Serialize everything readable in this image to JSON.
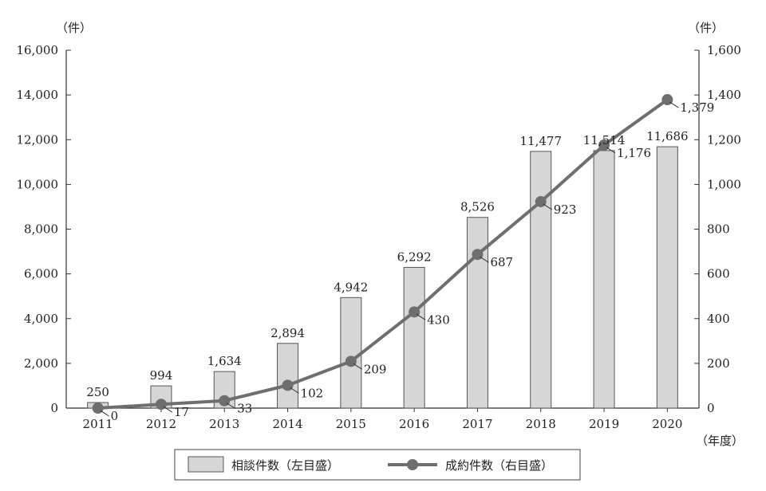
{
  "chart_data": {
    "type": "bar",
    "categories": [
      "2011",
      "2012",
      "2013",
      "2014",
      "2015",
      "2016",
      "2017",
      "2018",
      "2019",
      "2020"
    ],
    "series": [
      {
        "name": "相談件数（左目盛）",
        "type": "bar",
        "axis": "left",
        "values": [
          250,
          994,
          1634,
          2894,
          4942,
          6292,
          8526,
          11477,
          11514,
          11686
        ],
        "labels": [
          "250",
          "994",
          "1,634",
          "2,894",
          "4,942",
          "6,292",
          "8,526",
          "11,477",
          "11,514",
          "11,686"
        ]
      },
      {
        "name": "成約件数（右目盛）",
        "type": "line",
        "axis": "right",
        "values": [
          0,
          17,
          33,
          102,
          209,
          430,
          687,
          923,
          1176,
          1379
        ],
        "labels": [
          "0",
          "17",
          "33",
          "102",
          "209",
          "430",
          "687",
          "923",
          "1,176",
          "1,379"
        ]
      }
    ],
    "y_left": {
      "unit": "（件）",
      "ylim": [
        0,
        16000
      ],
      "ticks": [
        "0",
        "2,000",
        "4,000",
        "6,000",
        "8,000",
        "10,000",
        "12,000",
        "14,000",
        "16,000"
      ]
    },
    "y_right": {
      "unit": "（件）",
      "ylim": [
        0,
        1600
      ],
      "ticks": [
        "0",
        "200",
        "400",
        "600",
        "800",
        "1,000",
        "1,200",
        "1,400",
        "1,600"
      ]
    },
    "x_unit": "（年度）",
    "grid": false,
    "legend_position": "bottom-center",
    "colors": {
      "bar_fill": "#d6d6d6",
      "bar_stroke": "#555555",
      "line": "#6e6e6e",
      "axis": "#333333",
      "text": "#222222"
    }
  }
}
